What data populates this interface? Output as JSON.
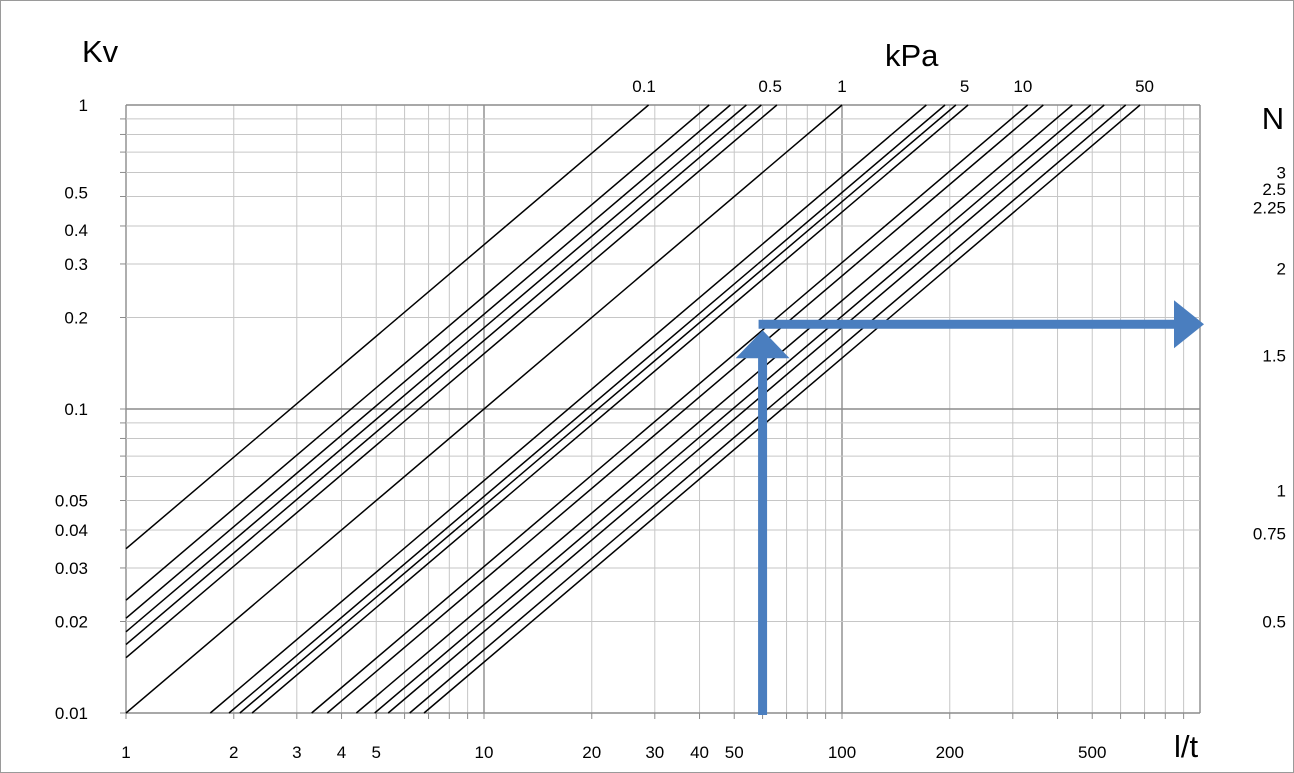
{
  "chart_data": {
    "type": "line",
    "title": "",
    "left_axis_label": "Kv",
    "top_axis_label": "kPa",
    "right_axis_label": "N",
    "x_axis_label": "l/t",
    "x_scale": "log",
    "y_scale": "log",
    "xlim": [
      1,
      1000
    ],
    "ylim": [
      0.01,
      1
    ],
    "grid": true,
    "x_tick_labels": [
      {
        "value": 1,
        "label": "1"
      },
      {
        "value": 2,
        "label": "2"
      },
      {
        "value": 3,
        "label": "3"
      },
      {
        "value": 4,
        "label": "4"
      },
      {
        "value": 5,
        "label": "5"
      },
      {
        "value": 10,
        "label": "10"
      },
      {
        "value": 20,
        "label": "20"
      },
      {
        "value": 30,
        "label": "30"
      },
      {
        "value": 40,
        "label": "40"
      },
      {
        "value": 50,
        "label": "50"
      },
      {
        "value": 100,
        "label": "100"
      },
      {
        "value": 200,
        "label": "200"
      },
      {
        "value": 500,
        "label": "500"
      }
    ],
    "y_tick_labels": [
      {
        "value": 1,
        "label": "1"
      },
      {
        "value": 0.5,
        "label": "0.5"
      },
      {
        "value": 0.4,
        "label": "0.4"
      },
      {
        "value": 0.3,
        "label": "0.3"
      },
      {
        "value": 0.2,
        "label": "0.2"
      },
      {
        "value": 0.1,
        "label": "0.1"
      },
      {
        "value": 0.05,
        "label": "0.05"
      },
      {
        "value": 0.04,
        "label": "0.04"
      },
      {
        "value": 0.03,
        "label": "0.03"
      },
      {
        "value": 0.02,
        "label": "0.02"
      },
      {
        "value": 0.01,
        "label": "0.01"
      }
    ],
    "kpa_tick_labels": [
      {
        "x_at_top": 28,
        "label": "0.1"
      },
      {
        "x_at_top": 63,
        "label": "0.5"
      },
      {
        "x_at_top": 100,
        "label": "1"
      },
      {
        "x_at_top": 220,
        "label": "5"
      },
      {
        "x_at_top": 320,
        "label": "10"
      },
      {
        "x_at_top": 700,
        "label": "50"
      }
    ],
    "n_tick_labels": [
      {
        "y_value": 0.83,
        "label": "N"
      },
      {
        "y_value": 0.6,
        "label": "3"
      },
      {
        "y_value": 0.53,
        "label": "2.5"
      },
      {
        "y_value": 0.46,
        "label": "2.25"
      },
      {
        "y_value": 0.29,
        "label": "2"
      },
      {
        "y_value": 0.15,
        "label": "1.5"
      },
      {
        "y_value": 0.054,
        "label": "1"
      },
      {
        "y_value": 0.039,
        "label": "0.75"
      },
      {
        "y_value": 0.02,
        "label": "0.5"
      }
    ],
    "series": [
      {
        "intercept_at_1": 0.0347
      },
      {
        "intercept_at_1": 0.0235
      },
      {
        "intercept_at_1": 0.0205
      },
      {
        "intercept_at_1": 0.0185
      },
      {
        "intercept_at_1": 0.0168
      },
      {
        "intercept_at_1": 0.0152
      },
      {
        "x_at_bottom": 1.0
      },
      {
        "x_at_bottom": 1.72
      },
      {
        "x_at_bottom": 1.94
      },
      {
        "x_at_bottom": 2.08
      },
      {
        "x_at_bottom": 2.25
      },
      {
        "x_at_bottom": 3.3
      },
      {
        "x_at_bottom": 3.65
      },
      {
        "x_at_bottom": 4.4
      },
      {
        "x_at_bottom": 4.95
      },
      {
        "x_at_bottom": 5.4
      },
      {
        "x_at_bottom": 6.2
      },
      {
        "x_at_bottom": 6.8
      }
    ],
    "annotation_arrow": {
      "color": "#4a7ebf",
      "points": [
        [
          60,
          0.01
        ],
        [
          60,
          0.19
        ],
        [
          1000,
          0.19
        ]
      ]
    }
  }
}
